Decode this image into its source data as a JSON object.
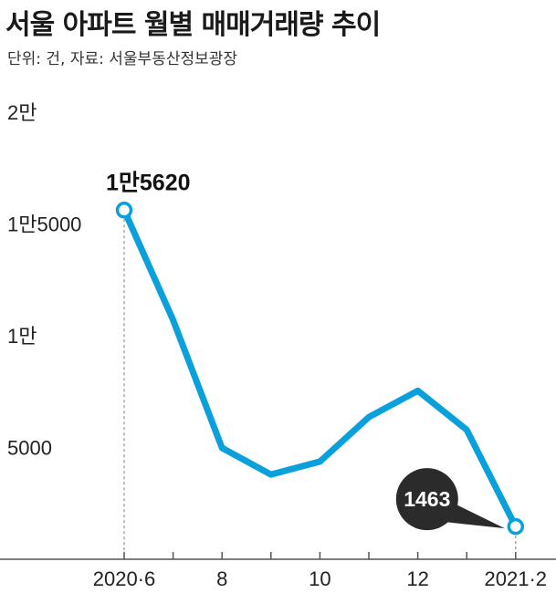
{
  "title": "서울 아파트 월별 매매거래량 추이",
  "source": "단위: 건, 자료: 서울부동산정보광장",
  "colors": {
    "line": "#0aa0dc",
    "bubble": "#2b2b2b",
    "axis": "#555555"
  },
  "chart_data": {
    "type": "line",
    "title": "서울 아파트 월별 매매거래량 추이",
    "xlabel": "",
    "ylabel": "",
    "ylim": [
      0,
      20000
    ],
    "grid": false,
    "y_ticks": [
      {
        "value": 20000,
        "label": "2만"
      },
      {
        "value": 15000,
        "label": "1만5000"
      },
      {
        "value": 10000,
        "label": "1만"
      },
      {
        "value": 5000,
        "label": "5000"
      }
    ],
    "x_ticks": [
      {
        "index": 0,
        "label": "2020·6"
      },
      {
        "index": 2,
        "label": "8"
      },
      {
        "index": 4,
        "label": "10"
      },
      {
        "index": 6,
        "label": "12"
      },
      {
        "index": 8,
        "label": "2021·2"
      }
    ],
    "categories": [
      "2020-06",
      "2020-07",
      "2020-08",
      "2020-09",
      "2020-10",
      "2020-11",
      "2020-12",
      "2021-01",
      "2021-02"
    ],
    "series": [
      {
        "values": [
          15620,
          10700,
          4980,
          3790,
          4370,
          6360,
          7540,
          5790,
          1463
        ]
      }
    ],
    "annotations": [
      {
        "index": 0,
        "label": "1만5620"
      },
      {
        "index": 8,
        "label": "1463"
      }
    ]
  }
}
